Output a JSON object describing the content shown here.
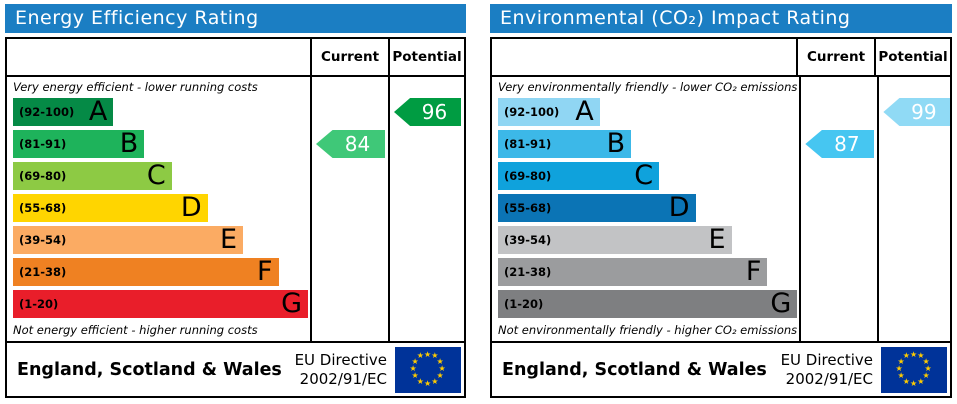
{
  "chart_data": [
    {
      "type": "bar",
      "title": "Energy Efficiency Rating",
      "categories": [
        "A (92-100)",
        "B (81-91)",
        "C (69-80)",
        "D (55-68)",
        "E (39-54)",
        "F (21-38)",
        "G (1-20)"
      ],
      "values": [
        34,
        44.5,
        53.8,
        66,
        78,
        90,
        100
      ],
      "values_note": "relative bar lengths in % of column width",
      "current_rating": 84,
      "current_band": "B",
      "potential_rating": 96,
      "potential_band": "A",
      "xlabel": "",
      "ylabel": "",
      "legend_position": "none"
    },
    {
      "type": "bar",
      "title": "Environmental (CO₂) Impact Rating",
      "categories": [
        "A (92-100)",
        "B (81-91)",
        "C (69-80)",
        "D (55-68)",
        "E (39-54)",
        "F (21-38)",
        "G (1-20)"
      ],
      "values": [
        34,
        44.5,
        53.8,
        66,
        78,
        90,
        100
      ],
      "values_note": "relative bar lengths in % of column width",
      "current_rating": 87,
      "current_band": "B",
      "potential_rating": 99,
      "potential_band": "A",
      "xlabel": "",
      "ylabel": "",
      "legend_position": "none"
    }
  ],
  "colors": {
    "title_bar": "#1b7ec3",
    "border": "#000000",
    "eu_flag_bg": "#003399",
    "eu_star": "#ffcc00"
  },
  "panels": [
    {
      "title": "Energy Efficiency Rating",
      "header": {
        "current": "Current",
        "potential": "Potential"
      },
      "top_note": "Very energy efficient - lower running costs",
      "bottom_note": "Not energy efficient - higher running costs",
      "bands": [
        {
          "range": "(92-100)",
          "letter": "A",
          "color": "#058a46",
          "width_pct": 34
        },
        {
          "range": "(81-91)",
          "letter": "B",
          "color": "#1eb35b",
          "width_pct": 44.5
        },
        {
          "range": "(69-80)",
          "letter": "C",
          "color": "#8dca44",
          "width_pct": 53.8
        },
        {
          "range": "(55-68)",
          "letter": "D",
          "color": "#ffd500",
          "width_pct": 66
        },
        {
          "range": "(39-54)",
          "letter": "E",
          "color": "#fbab63",
          "width_pct": 78
        },
        {
          "range": "(21-38)",
          "letter": "F",
          "color": "#ef8122",
          "width_pct": 90
        },
        {
          "range": "(1-20)",
          "letter": "G",
          "color": "#e91e2a",
          "width_pct": 100
        }
      ],
      "current": {
        "value": "84",
        "row": 1,
        "color": "#3fc878"
      },
      "potential": {
        "value": "96",
        "row": 0,
        "color": "#009c42"
      },
      "footer": {
        "region": "England, Scotland & Wales",
        "directive_line1": "EU Directive",
        "directive_line2": "2002/91/EC"
      }
    },
    {
      "title": "Environmental (CO₂) Impact Rating",
      "header": {
        "current": "Current",
        "potential": "Potential"
      },
      "top_note": "Very environmentally friendly - lower CO₂ emissions",
      "bottom_note": "Not environmentally friendly - higher CO₂ emissions",
      "bands": [
        {
          "range": "(92-100)",
          "letter": "A",
          "color": "#90d6f3",
          "width_pct": 34
        },
        {
          "range": "(81-91)",
          "letter": "B",
          "color": "#3cb8e8",
          "width_pct": 44.5
        },
        {
          "range": "(69-80)",
          "letter": "C",
          "color": "#0fa2dc",
          "width_pct": 53.8
        },
        {
          "range": "(55-68)",
          "letter": "D",
          "color": "#0b74b5",
          "width_pct": 66
        },
        {
          "range": "(39-54)",
          "letter": "E",
          "color": "#c2c3c5",
          "width_pct": 78
        },
        {
          "range": "(21-38)",
          "letter": "F",
          "color": "#9b9c9e",
          "width_pct": 90
        },
        {
          "range": "(1-20)",
          "letter": "G",
          "color": "#7e7f81",
          "width_pct": 100
        }
      ],
      "current": {
        "value": "87",
        "row": 1,
        "color": "#46c6f1"
      },
      "potential": {
        "value": "99",
        "row": 0,
        "color": "#90daf5"
      },
      "footer": {
        "region": "England, Scotland & Wales",
        "directive_line1": "EU Directive",
        "directive_line2": "2002/91/EC"
      }
    }
  ]
}
